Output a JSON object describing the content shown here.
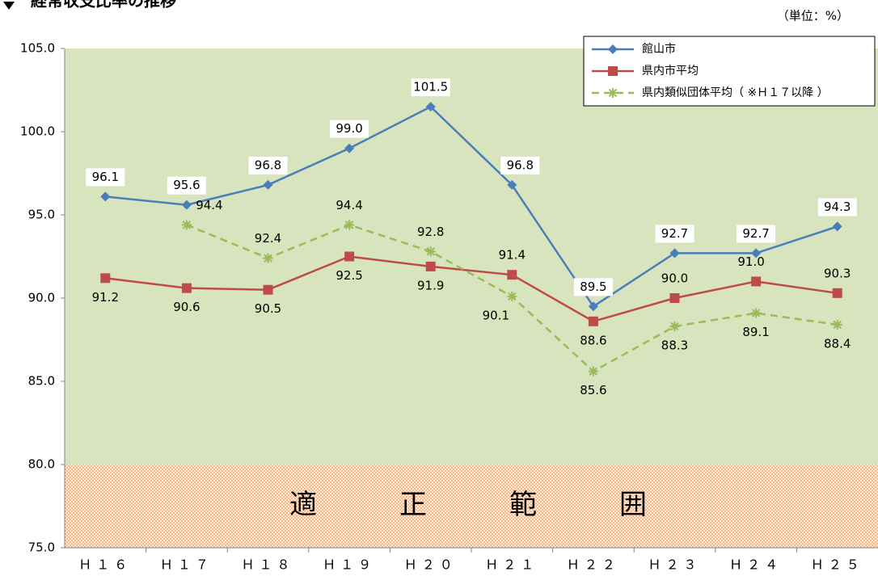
{
  "chart_data": {
    "type": "line",
    "title": "経常収支比率の推移",
    "unit_label": "（単位：%）",
    "categories": [
      "Ｈ１６",
      "Ｈ１７",
      "Ｈ１８",
      "Ｈ１９",
      "Ｈ２０",
      "Ｈ２１",
      "Ｈ２２",
      "Ｈ２３",
      "Ｈ２４",
      "Ｈ２５"
    ],
    "series": [
      {
        "name": "館山市",
        "color": "#4a7ebb",
        "marker": "diamond",
        "dashed": false,
        "values": [
          96.1,
          95.6,
          96.8,
          99.0,
          101.5,
          96.8,
          89.5,
          92.7,
          92.7,
          94.3
        ],
        "value_labels": [
          "96.1",
          "95.6",
          "96.8",
          "99.0",
          "101.5",
          "96.8",
          "89.5",
          "92.7",
          "92.7",
          "94.3"
        ]
      },
      {
        "name": "県内市平均",
        "color": "#be4b48",
        "marker": "square",
        "dashed": false,
        "values": [
          91.2,
          90.6,
          90.5,
          92.5,
          91.9,
          91.4,
          88.6,
          90.0,
          91.0,
          90.3
        ],
        "value_labels": [
          "91.2",
          "90.6",
          "90.5",
          "92.5",
          "91.9",
          "91.4",
          "88.6",
          "90.0",
          "91.0",
          "90.3"
        ]
      },
      {
        "name": "県内類似団体平均（ ※Ｈ１７以降 ）",
        "color": "#9bbb59",
        "marker": "star",
        "dashed": true,
        "values": [
          null,
          94.4,
          92.4,
          94.4,
          92.8,
          90.1,
          85.6,
          88.3,
          89.1,
          88.4
        ],
        "value_labels": [
          null,
          "94.4",
          "92.4",
          "94.4",
          "92.8",
          "90.1",
          "85.6",
          "88.3",
          "89.1",
          "88.4"
        ]
      }
    ],
    "optimal_range": {
      "label": "適　　　正　　　範　　　囲",
      "from": 75,
      "to": 80
    },
    "ylim": [
      75,
      105
    ],
    "yticks": [
      {
        "value": 75,
        "label": "75.0"
      },
      {
        "value": 80,
        "label": "80.0"
      },
      {
        "value": 85,
        "label": "85.0"
      },
      {
        "value": 90,
        "label": "90.0"
      },
      {
        "value": 95,
        "label": "95.0"
      },
      {
        "value": 100,
        "label": "100.0"
      },
      {
        "value": 105,
        "label": "105.0"
      }
    ],
    "legend": "top-right"
  }
}
